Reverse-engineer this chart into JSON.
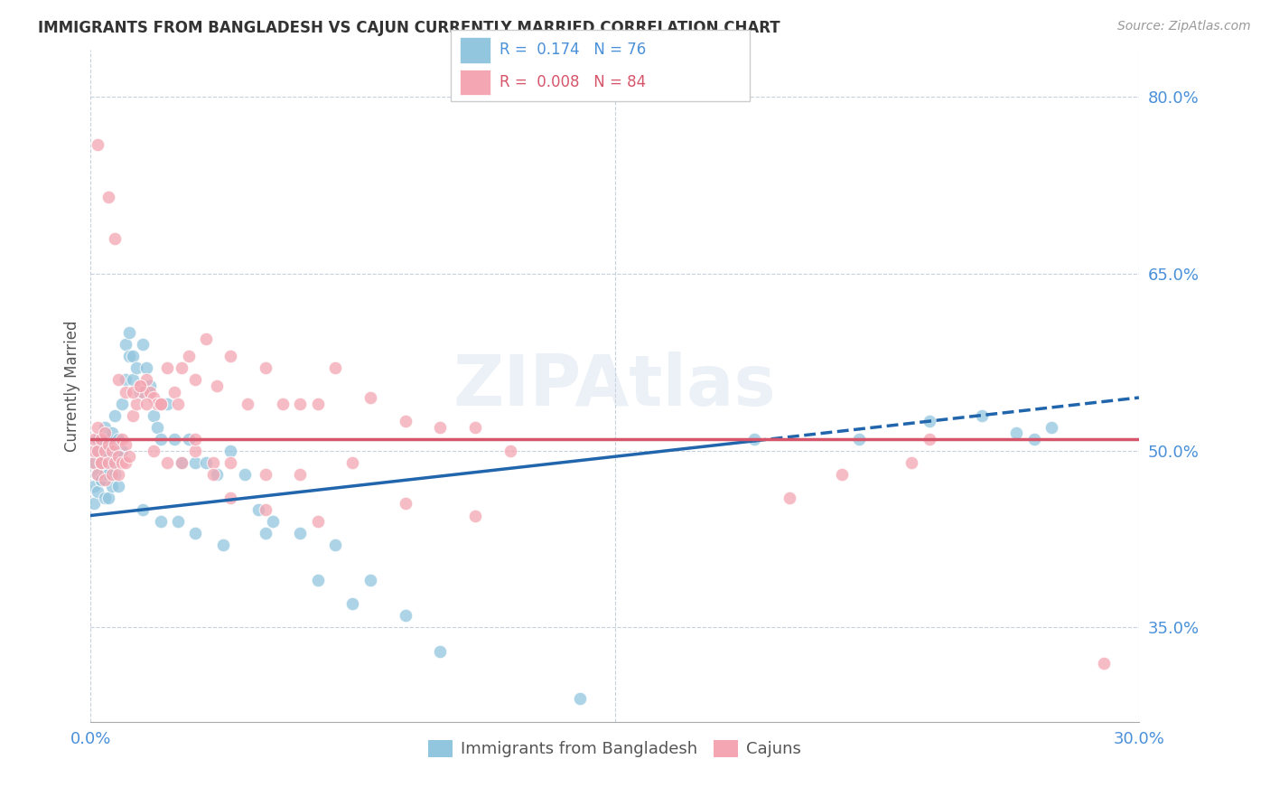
{
  "title": "IMMIGRANTS FROM BANGLADESH VS CAJUN CURRENTLY MARRIED CORRELATION CHART",
  "source": "Source: ZipAtlas.com",
  "ylabel": "Currently Married",
  "legend_label_1": "Immigrants from Bangladesh",
  "legend_label_2": "Cajuns",
  "R1": 0.174,
  "N1": 76,
  "R2": 0.008,
  "N2": 84,
  "color_blue": "#92c5de",
  "color_pink": "#f4a6b2",
  "color_blue_line": "#2166ac",
  "color_pink_line": "#d6556a",
  "watermark": "ZIPAtlas",
  "xlim": [
    0.0,
    0.3
  ],
  "ylim": [
    0.27,
    0.84
  ],
  "y_ticks": [
    0.35,
    0.5,
    0.65,
    0.8
  ],
  "y_tick_labels": [
    "35.0%",
    "50.0%",
    "65.0%",
    "80.0%"
  ],
  "x_ticks": [
    0.0,
    0.15,
    0.3
  ],
  "x_tick_labels": [
    "0.0%",
    "",
    "30.0%"
  ],
  "blue_x": [
    0.001,
    0.001,
    0.001,
    0.002,
    0.002,
    0.002,
    0.002,
    0.003,
    0.003,
    0.003,
    0.003,
    0.004,
    0.004,
    0.004,
    0.004,
    0.005,
    0.005,
    0.005,
    0.005,
    0.006,
    0.006,
    0.006,
    0.007,
    0.007,
    0.007,
    0.008,
    0.008,
    0.008,
    0.009,
    0.009,
    0.01,
    0.01,
    0.011,
    0.011,
    0.012,
    0.012,
    0.013,
    0.014,
    0.015,
    0.016,
    0.017,
    0.018,
    0.019,
    0.02,
    0.022,
    0.024,
    0.026,
    0.028,
    0.03,
    0.033,
    0.036,
    0.04,
    0.044,
    0.048,
    0.052,
    0.06,
    0.07,
    0.08,
    0.09,
    0.1,
    0.015,
    0.02,
    0.025,
    0.03,
    0.038,
    0.05,
    0.065,
    0.075,
    0.14,
    0.19,
    0.22,
    0.24,
    0.255,
    0.265,
    0.27,
    0.275
  ],
  "blue_y": [
    0.49,
    0.47,
    0.455,
    0.465,
    0.48,
    0.5,
    0.51,
    0.475,
    0.49,
    0.505,
    0.475,
    0.46,
    0.48,
    0.5,
    0.52,
    0.46,
    0.48,
    0.5,
    0.51,
    0.47,
    0.49,
    0.515,
    0.48,
    0.5,
    0.53,
    0.47,
    0.495,
    0.51,
    0.5,
    0.54,
    0.56,
    0.59,
    0.58,
    0.6,
    0.56,
    0.58,
    0.57,
    0.55,
    0.59,
    0.57,
    0.555,
    0.53,
    0.52,
    0.51,
    0.54,
    0.51,
    0.49,
    0.51,
    0.49,
    0.49,
    0.48,
    0.5,
    0.48,
    0.45,
    0.44,
    0.43,
    0.42,
    0.39,
    0.36,
    0.33,
    0.45,
    0.44,
    0.44,
    0.43,
    0.42,
    0.43,
    0.39,
    0.37,
    0.29,
    0.51,
    0.51,
    0.525,
    0.53,
    0.515,
    0.51,
    0.52
  ],
  "pink_x": [
    0.001,
    0.001,
    0.001,
    0.002,
    0.002,
    0.002,
    0.003,
    0.003,
    0.003,
    0.004,
    0.004,
    0.004,
    0.005,
    0.005,
    0.006,
    0.006,
    0.007,
    0.007,
    0.008,
    0.008,
    0.009,
    0.009,
    0.01,
    0.01,
    0.011,
    0.012,
    0.013,
    0.014,
    0.015,
    0.016,
    0.017,
    0.018,
    0.019,
    0.02,
    0.022,
    0.024,
    0.026,
    0.028,
    0.03,
    0.033,
    0.036,
    0.04,
    0.045,
    0.05,
    0.055,
    0.06,
    0.065,
    0.07,
    0.08,
    0.09,
    0.1,
    0.11,
    0.12,
    0.018,
    0.022,
    0.026,
    0.03,
    0.035,
    0.04,
    0.05,
    0.06,
    0.075,
    0.09,
    0.11,
    0.008,
    0.01,
    0.012,
    0.014,
    0.016,
    0.02,
    0.025,
    0.03,
    0.035,
    0.04,
    0.05,
    0.065,
    0.2,
    0.215,
    0.235,
    0.24,
    0.002,
    0.005,
    0.007,
    0.29
  ],
  "pink_y": [
    0.49,
    0.5,
    0.51,
    0.48,
    0.5,
    0.52,
    0.49,
    0.51,
    0.49,
    0.475,
    0.5,
    0.515,
    0.49,
    0.505,
    0.48,
    0.5,
    0.49,
    0.505,
    0.48,
    0.495,
    0.51,
    0.49,
    0.505,
    0.49,
    0.495,
    0.53,
    0.54,
    0.555,
    0.55,
    0.56,
    0.55,
    0.545,
    0.54,
    0.54,
    0.57,
    0.55,
    0.57,
    0.58,
    0.56,
    0.595,
    0.555,
    0.58,
    0.54,
    0.57,
    0.54,
    0.54,
    0.54,
    0.57,
    0.545,
    0.525,
    0.52,
    0.52,
    0.5,
    0.5,
    0.49,
    0.49,
    0.5,
    0.49,
    0.49,
    0.48,
    0.48,
    0.49,
    0.455,
    0.445,
    0.56,
    0.55,
    0.55,
    0.555,
    0.54,
    0.54,
    0.54,
    0.51,
    0.48,
    0.46,
    0.45,
    0.44,
    0.46,
    0.48,
    0.49,
    0.51,
    0.76,
    0.715,
    0.68,
    0.32
  ]
}
